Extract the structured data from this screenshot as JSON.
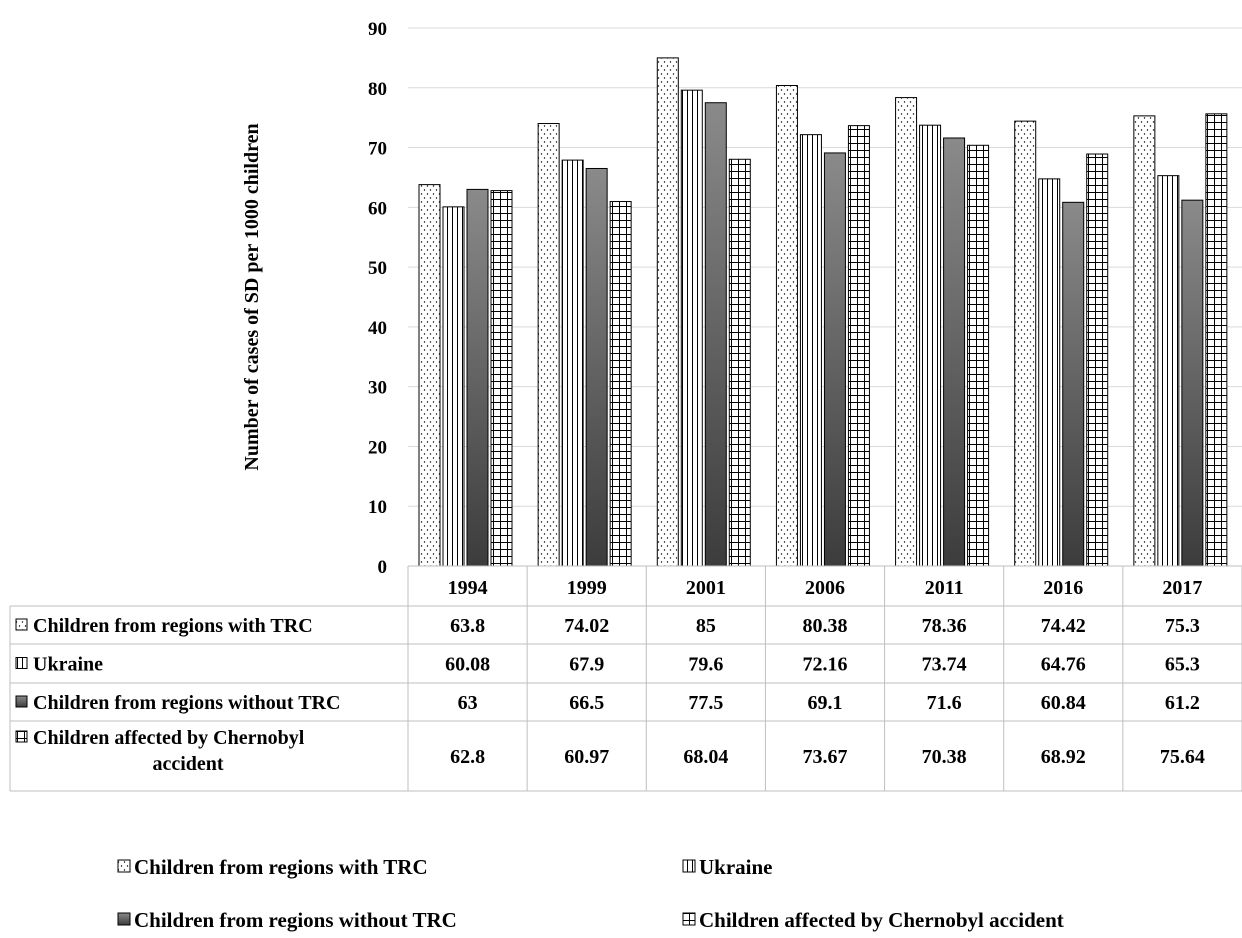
{
  "chart_data": {
    "type": "bar",
    "xlabel": "",
    "ylabel": "Number of cases of SD per 1000 children",
    "ylim": [
      0,
      90
    ],
    "yticks": [
      0,
      10,
      20,
      30,
      40,
      50,
      60,
      70,
      80,
      90
    ],
    "grid": true,
    "legend_position": "bottom",
    "categories": [
      "1994",
      "1999",
      "2001",
      "2006",
      "2011",
      "2016",
      "2017"
    ],
    "series": [
      {
        "name": "Children from regions with TRC",
        "table_label": [
          "Children from regions with TRC"
        ],
        "pattern": "dots",
        "values": [
          63.8,
          74.02,
          85,
          80.38,
          78.36,
          74.42,
          75.3
        ],
        "labels": [
          "63.8",
          "74.02",
          "85",
          "80.38",
          "78.36",
          "74.42",
          "75.3"
        ]
      },
      {
        "name": "Ukraine",
        "table_label": [
          "Ukraine"
        ],
        "pattern": "vertical-lines",
        "values": [
          60.08,
          67.9,
          79.6,
          72.16,
          73.74,
          64.76,
          65.3
        ],
        "labels": [
          "60.08",
          "67.9",
          "79.6",
          "72.16",
          "73.74",
          "64.76",
          "65.3"
        ]
      },
      {
        "name": "Children from regions without TRC",
        "table_label": [
          "Children from regions without TRC"
        ],
        "pattern": "dark-gradient",
        "values": [
          63,
          66.5,
          77.5,
          69.1,
          71.6,
          60.84,
          61.2
        ],
        "labels": [
          "63",
          "66.5",
          "77.5",
          "69.1",
          "71.6",
          "60.84",
          "61.2"
        ]
      },
      {
        "name": "Children affected by Chernobyl accident",
        "table_label": [
          "Children affected by Chernobyl",
          "accident"
        ],
        "pattern": "grid",
        "values": [
          62.8,
          60.97,
          68.04,
          73.67,
          70.38,
          68.92,
          75.64
        ],
        "labels": [
          "62.8",
          "60.97",
          "68.04",
          "73.67",
          "70.38",
          "68.92",
          "75.64"
        ]
      }
    ],
    "colors": {
      "text": "#000000",
      "gridline": "#d9d9d9",
      "bar_outline": "#000000",
      "dark_bar_top": "#8a8a8a",
      "dark_bar_bottom": "#3c3c3c"
    }
  }
}
